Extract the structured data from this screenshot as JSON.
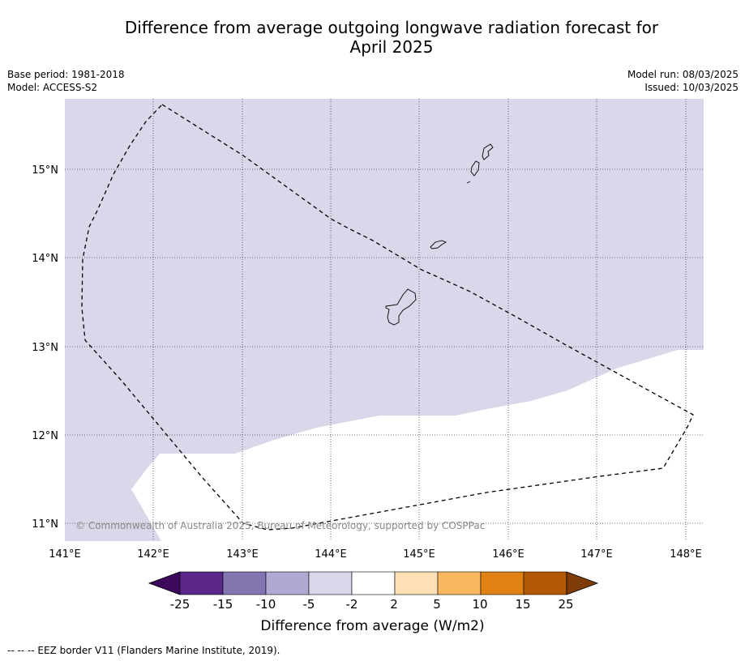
{
  "title_line1": "Difference from average outgoing longwave radiation forecast for",
  "title_line2": "April 2025",
  "meta_left": {
    "base_period": "Base period: 1981-2018",
    "model": "Model: ACCESS-S2"
  },
  "meta_right": {
    "model_run": "Model run: 08/03/2025",
    "issued": "Issued: 10/03/2025"
  },
  "map": {
    "lon_range": [
      141,
      148.2
    ],
    "lat_range": [
      10.8,
      15.8
    ],
    "lon_ticks": [
      "141°E",
      "142°E",
      "143°E",
      "144°E",
      "145°E",
      "146°E",
      "147°E",
      "148°E"
    ],
    "lat_ticks": [
      "15°N",
      "14°N",
      "13°N",
      "12°N",
      "11°N"
    ],
    "copyright": "© Commonwealth of Australia 2025, Bureau of Meteorology, supported by COSPPac",
    "fill_color_negative": "#d8d8ea",
    "fill_color_neutral": "#ffffff"
  },
  "colorbar": {
    "labels": [
      "-25",
      "-15",
      "-10",
      "-5",
      "-2",
      "2",
      "5",
      "10",
      "15",
      "25"
    ],
    "colors": [
      "#3b0a5c",
      "#5a2689",
      "#8474b0",
      "#b0a9d3",
      "#d8d8ea",
      "#ffffff",
      "#fde0b6",
      "#fbb860",
      "#e08214",
      "#b35806",
      "#7f3b08"
    ],
    "title": "Difference from average (W/m2)"
  },
  "footer": "--  --  -- EEZ border V11 (Flanders Marine Institute, 2019)."
}
